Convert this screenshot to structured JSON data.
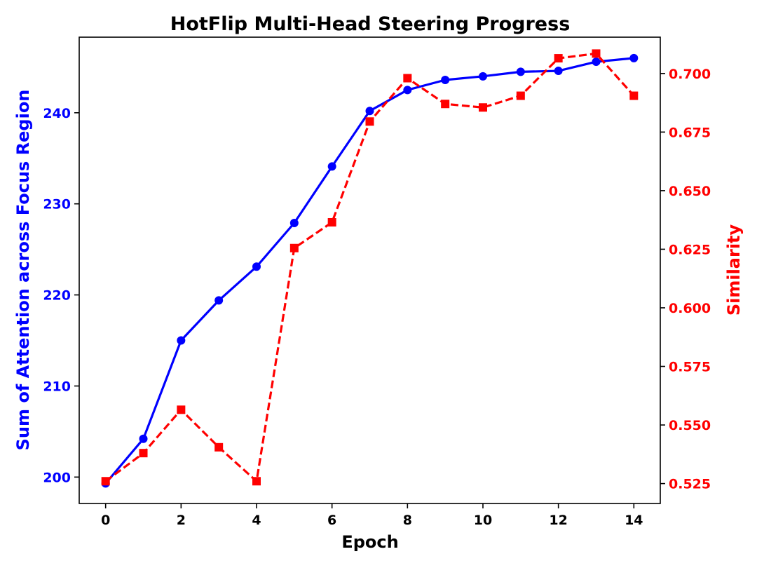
{
  "chart_data": {
    "type": "line",
    "title": "HotFlip Multi-Head Steering Progress",
    "xlabel": "Epoch",
    "ylabel_left": "Sum of Attention across Focus Region",
    "ylabel_right": "Similarity",
    "xlim": [
      -0.7,
      14.7
    ],
    "ylim_left": [
      197.1,
      248.3
    ],
    "ylim_right": [
      0.5165,
      0.7155
    ],
    "xticks": [
      0,
      2,
      4,
      6,
      8,
      10,
      12,
      14
    ],
    "yticks_left": [
      200,
      210,
      220,
      230,
      240
    ],
    "yticks_right": [
      0.525,
      0.55,
      0.575,
      0.6,
      0.625,
      0.65,
      0.675,
      0.7
    ],
    "grid": false,
    "colors": {
      "left": "#0000ff",
      "right": "#ff0000",
      "axis": "#000000"
    },
    "x": [
      0,
      1,
      2,
      3,
      4,
      5,
      6,
      7,
      8,
      9,
      10,
      11,
      12,
      13,
      14
    ],
    "series": [
      {
        "axis": "left",
        "style": "solid",
        "marker": "circle",
        "values": [
          199.3,
          204.2,
          215.0,
          219.4,
          223.1,
          227.9,
          234.1,
          240.2,
          242.5,
          243.6,
          244.0,
          244.5,
          244.6,
          245.6,
          246.0
        ]
      },
      {
        "axis": "right",
        "style": "dashed",
        "marker": "square",
        "values": [
          0.526,
          0.538,
          0.5565,
          0.5405,
          0.526,
          0.6255,
          0.6365,
          0.6795,
          0.698,
          0.687,
          0.6855,
          0.6905,
          0.7065,
          0.7085,
          0.6905
        ]
      }
    ]
  }
}
